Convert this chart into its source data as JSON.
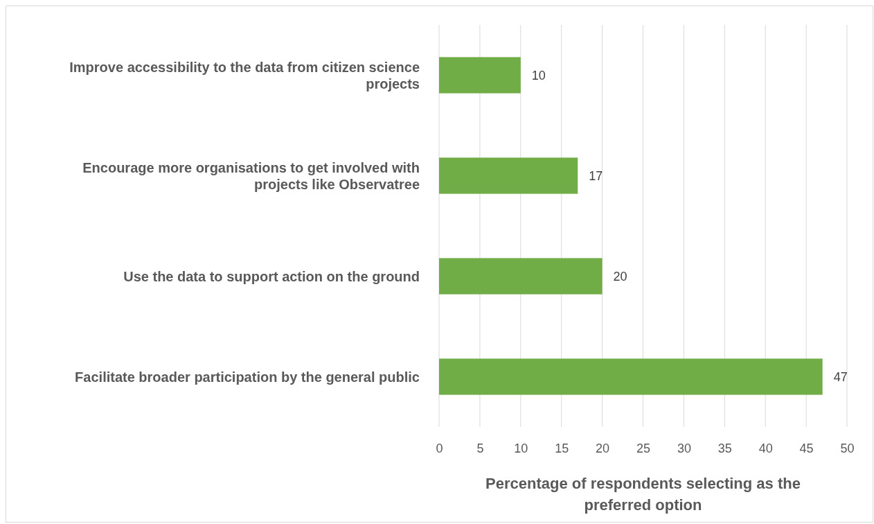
{
  "chart_data": {
    "type": "bar",
    "orientation": "horizontal",
    "categories": [
      "Improve accessibility to the data from citizen science projects",
      "Encourage more organisations to get involved with projects like Observatree",
      "Use the data to support action on the ground",
      "Facilitate broader participation by the general public"
    ],
    "values": [
      10,
      17,
      20,
      47
    ],
    "color": "#70ad47",
    "xlabel": "Percentage of respondents selecting as the preferred option",
    "xlim": [
      0,
      50
    ],
    "xticks": [
      0,
      5,
      10,
      15,
      20,
      25,
      30,
      35,
      40,
      45,
      50
    ],
    "grid": "x",
    "data_labels": true
  }
}
